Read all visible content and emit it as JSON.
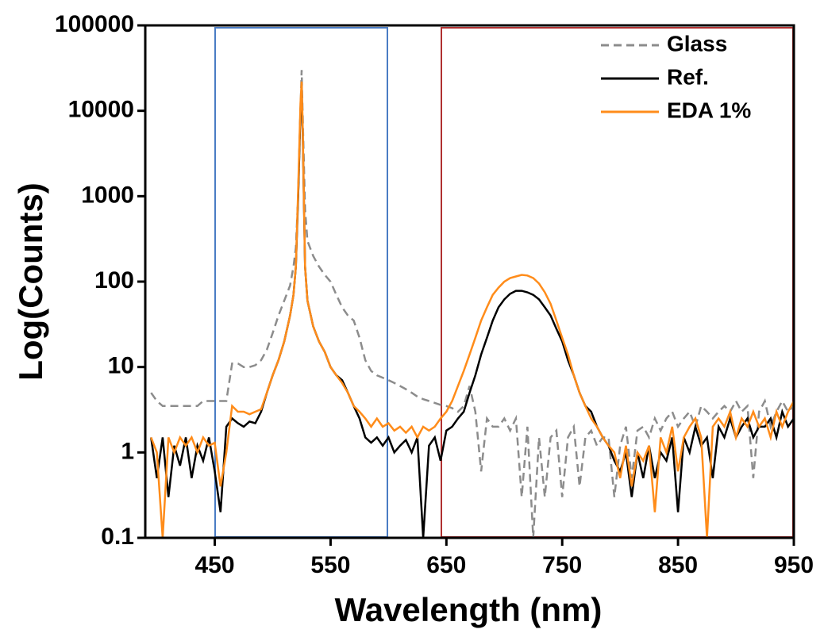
{
  "chart_data": {
    "type": "line",
    "x_label": "Wavelength (nm)",
    "y_label": "Log(Counts)",
    "yscale": "log",
    "xlim": [
      390,
      950
    ],
    "ylim": [
      0.1,
      100000
    ],
    "xticks": [
      450,
      550,
      650,
      750,
      850,
      950
    ],
    "yticks": [
      0.1,
      1,
      10,
      100,
      1000,
      10000,
      100000
    ],
    "legend": "upper right",
    "x": [
      395,
      400,
      405,
      410,
      415,
      420,
      425,
      430,
      435,
      440,
      445,
      450,
      455,
      460,
      465,
      470,
      475,
      480,
      485,
      490,
      495,
      500,
      505,
      510,
      515,
      518,
      520,
      522,
      524,
      525,
      526,
      528,
      530,
      535,
      540,
      545,
      550,
      555,
      560,
      565,
      570,
      575,
      580,
      585,
      590,
      595,
      600,
      605,
      610,
      615,
      620,
      625,
      630,
      635,
      640,
      645,
      650,
      655,
      660,
      665,
      670,
      675,
      680,
      685,
      690,
      695,
      700,
      705,
      710,
      715,
      720,
      725,
      730,
      735,
      740,
      745,
      750,
      755,
      760,
      765,
      770,
      775,
      780,
      785,
      790,
      795,
      800,
      805,
      810,
      815,
      820,
      825,
      830,
      835,
      840,
      845,
      850,
      855,
      860,
      865,
      870,
      875,
      880,
      885,
      890,
      895,
      900,
      905,
      910,
      915,
      920,
      925,
      930,
      935,
      940,
      945,
      950
    ],
    "series": [
      {
        "name": "Glass",
        "color": "#8c8c8c",
        "linestyle": "dashed",
        "values": [
          5,
          4,
          3.5,
          3.5,
          3.5,
          3.5,
          3.5,
          3.5,
          3.5,
          4,
          4,
          4,
          4,
          4,
          11,
          11,
          10,
          10,
          10.5,
          12,
          16,
          25,
          40,
          60,
          90,
          150,
          250,
          1000,
          10000,
          30000,
          8000,
          700,
          300,
          200,
          150,
          120,
          100,
          70,
          50,
          40,
          35,
          22,
          12,
          9,
          8,
          7.5,
          7,
          6.5,
          6,
          5.5,
          5,
          4.5,
          4.2,
          4,
          3.8,
          3.6,
          3.5,
          3.3,
          3,
          3.5,
          6,
          3,
          0.6,
          2.5,
          2,
          2,
          2.5,
          1.8,
          2.5,
          0.3,
          2,
          0.1,
          1.5,
          0.3,
          1.5,
          1.8,
          0.3,
          1.5,
          2,
          0.4,
          1.5,
          1.8,
          1.2,
          1.5,
          1.5,
          0.3,
          1.2,
          2,
          0.5,
          1.8,
          2,
          1.5,
          2.5,
          1.8,
          2.5,
          3,
          2,
          2.5,
          3,
          2,
          3.5,
          3,
          2.5,
          3,
          3.5,
          3,
          4,
          3,
          3.5,
          0.5,
          3,
          4,
          2,
          3,
          4,
          3,
          3.5
        ]
      },
      {
        "name": "Ref.",
        "color": "#000000",
        "linestyle": "solid",
        "values": [
          1.5,
          0.5,
          1.5,
          0.3,
          1.2,
          0.7,
          1.5,
          0.5,
          1.2,
          0.8,
          1.5,
          0.6,
          0.2,
          2,
          2.5,
          2.2,
          2,
          2.3,
          2.2,
          3,
          5,
          8,
          12,
          20,
          40,
          70,
          150,
          1000,
          10000,
          20000,
          5000,
          150,
          60,
          30,
          20,
          15,
          10,
          8,
          7,
          5,
          3.5,
          2.5,
          1.5,
          1.3,
          1.5,
          1.2,
          1.5,
          1,
          1.2,
          1.4,
          1,
          1.5,
          0.1,
          1.2,
          1.5,
          0.8,
          1.8,
          2,
          2.5,
          3,
          5,
          8,
          14,
          22,
          35,
          50,
          62,
          72,
          78,
          78,
          75,
          70,
          62,
          50,
          40,
          28,
          20,
          12,
          8,
          5,
          3.5,
          3,
          2,
          1.5,
          1.2,
          0.8,
          0.6,
          1,
          0.3,
          1,
          0.5,
          1.2,
          0.5,
          1,
          0.8,
          1.5,
          0.2,
          1.5,
          1,
          2,
          1.2,
          1.5,
          0.5,
          2,
          1.5,
          2.5,
          1.5,
          2,
          2.5,
          1.5,
          2,
          2,
          2.5,
          1.5,
          3,
          2,
          2.5
        ]
      },
      {
        "name": "EDA 1%",
        "color": "#ff8c1a",
        "linestyle": "solid",
        "values": [
          1.5,
          1,
          0.1,
          1.5,
          1,
          1.5,
          1.2,
          1.5,
          1,
          1.5,
          1.2,
          1.3,
          0.4,
          1,
          3.5,
          3,
          3,
          2.8,
          3,
          3.2,
          5,
          8,
          12,
          20,
          40,
          70,
          150,
          1200,
          12000,
          22000,
          6000,
          150,
          60,
          30,
          20,
          15,
          10,
          8,
          6.5,
          5,
          3.5,
          3,
          2.5,
          2,
          2.5,
          2,
          2.2,
          1.8,
          2,
          1.7,
          2,
          1.5,
          2,
          1.8,
          2,
          2.5,
          3,
          4,
          6,
          9,
          14,
          22,
          35,
          50,
          70,
          85,
          100,
          110,
          115,
          120,
          118,
          110,
          95,
          75,
          55,
          35,
          22,
          14,
          8,
          5,
          3.5,
          2.5,
          2,
          1.5,
          1.2,
          1,
          0.5,
          1.2,
          0.4,
          1,
          0.8,
          1.2,
          0.2,
          1.5,
          1,
          2,
          0.6,
          1.5,
          2,
          2.5,
          1.5,
          0.1,
          2,
          2.5,
          2,
          3,
          1.5,
          2.5,
          2,
          3,
          2,
          2.5,
          1.5,
          3,
          2,
          3,
          4
        ]
      }
    ]
  }
}
